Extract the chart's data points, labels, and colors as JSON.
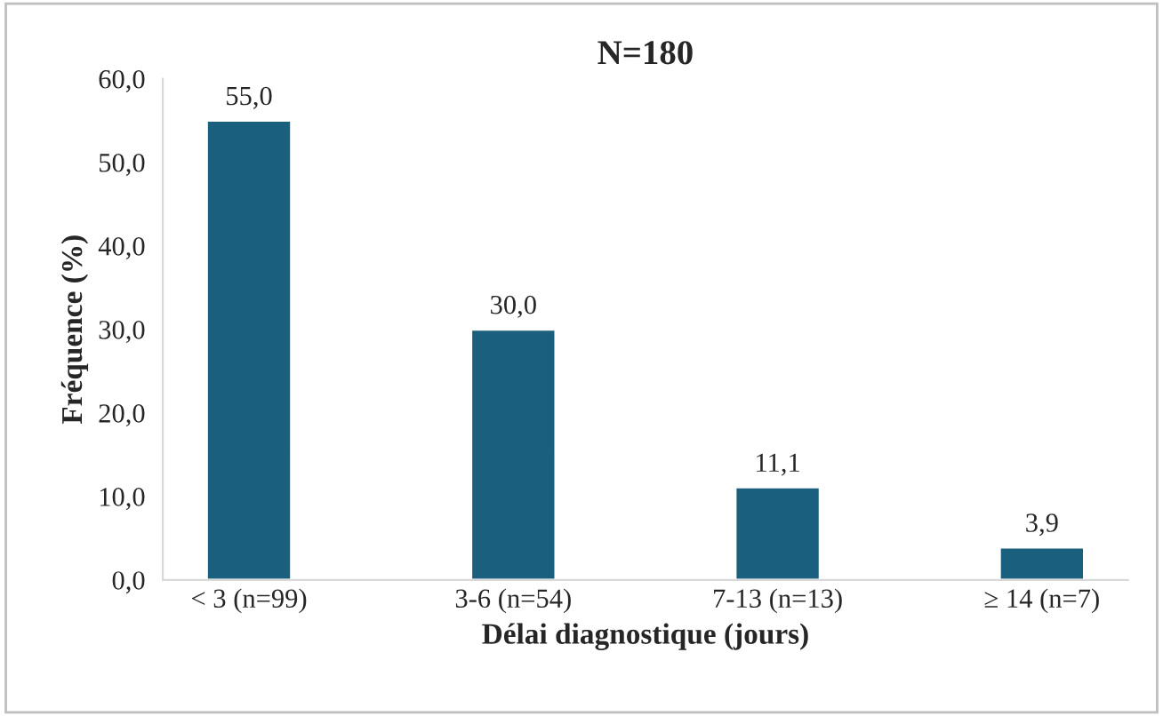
{
  "chart_data": {
    "type": "bar",
    "title": "N=180",
    "xlabel": "Délai diagnostique (jours)",
    "ylabel": "Fréquence (%)",
    "categories": [
      "< 3 (n=99)",
      "3-6 (n=54)",
      "7-13 (n=13)",
      "≥ 14 (n=7)"
    ],
    "values": [
      55.0,
      30.0,
      11.1,
      3.9
    ],
    "value_labels": [
      "55,0",
      "30,0",
      "11,1",
      "3,9"
    ],
    "color": "#1b5f7e",
    "ylim": [
      0,
      60
    ],
    "yticks": [
      {
        "value": 0,
        "label": "0,0"
      },
      {
        "value": 10,
        "label": "10,0"
      },
      {
        "value": 20,
        "label": "20,0"
      },
      {
        "value": 30,
        "label": "30,0"
      },
      {
        "value": 40,
        "label": "40,0"
      },
      {
        "value": 50,
        "label": "50,0"
      },
      {
        "value": 60,
        "label": "60,0"
      }
    ],
    "grid": false,
    "legend": false
  }
}
